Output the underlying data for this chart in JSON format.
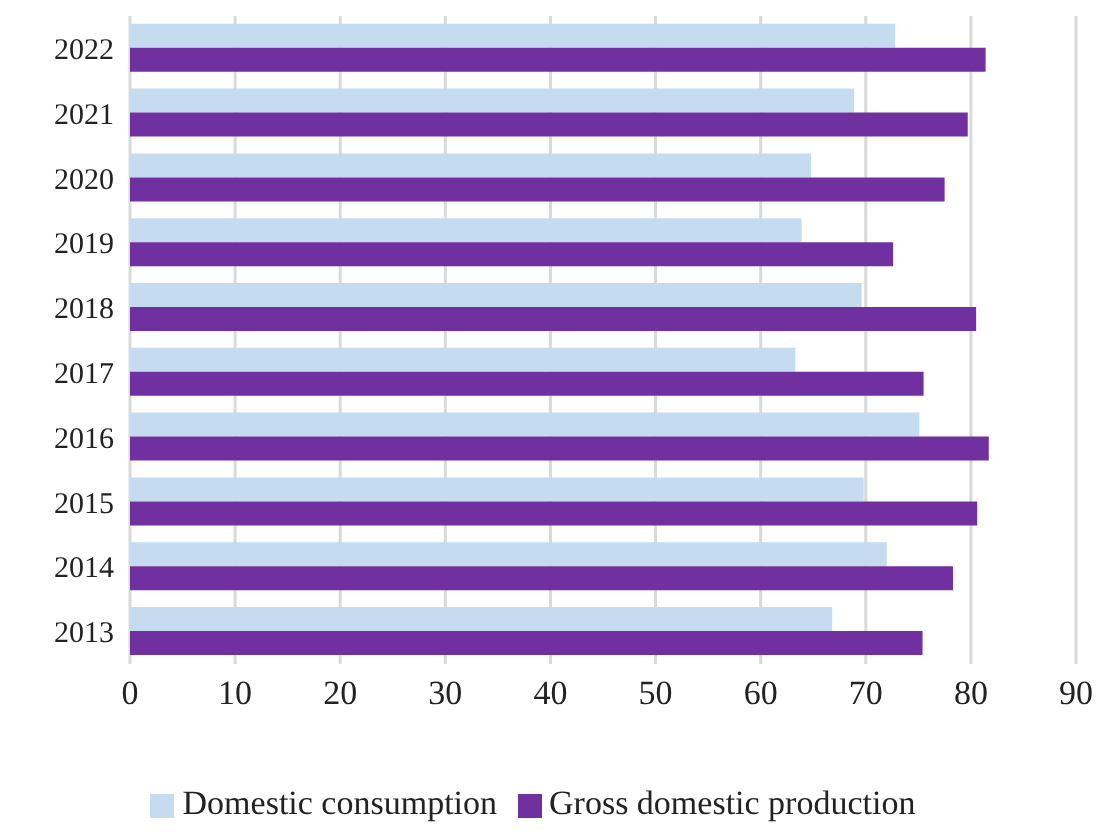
{
  "chart_data": {
    "type": "bar",
    "orientation": "horizontal",
    "categories": [
      "2022",
      "2021",
      "2020",
      "2019",
      "2018",
      "2017",
      "2016",
      "2015",
      "2014",
      "2013"
    ],
    "series": [
      {
        "name": "Domestic consumption",
        "color": "#c5dcf0",
        "values": [
          72.8,
          68.9,
          64.8,
          63.9,
          69.6,
          63.3,
          75.1,
          69.8,
          72.0,
          66.8
        ]
      },
      {
        "name": "Gross domestic production",
        "color": "#7030a0",
        "values": [
          81.4,
          79.7,
          77.5,
          72.6,
          80.5,
          75.5,
          81.7,
          80.6,
          78.3,
          75.4
        ]
      }
    ],
    "xlim": [
      0,
      90
    ],
    "xticks": [
      0,
      10,
      20,
      30,
      40,
      50,
      60,
      70,
      80,
      90
    ],
    "grid": "x",
    "legend": "bottom"
  }
}
